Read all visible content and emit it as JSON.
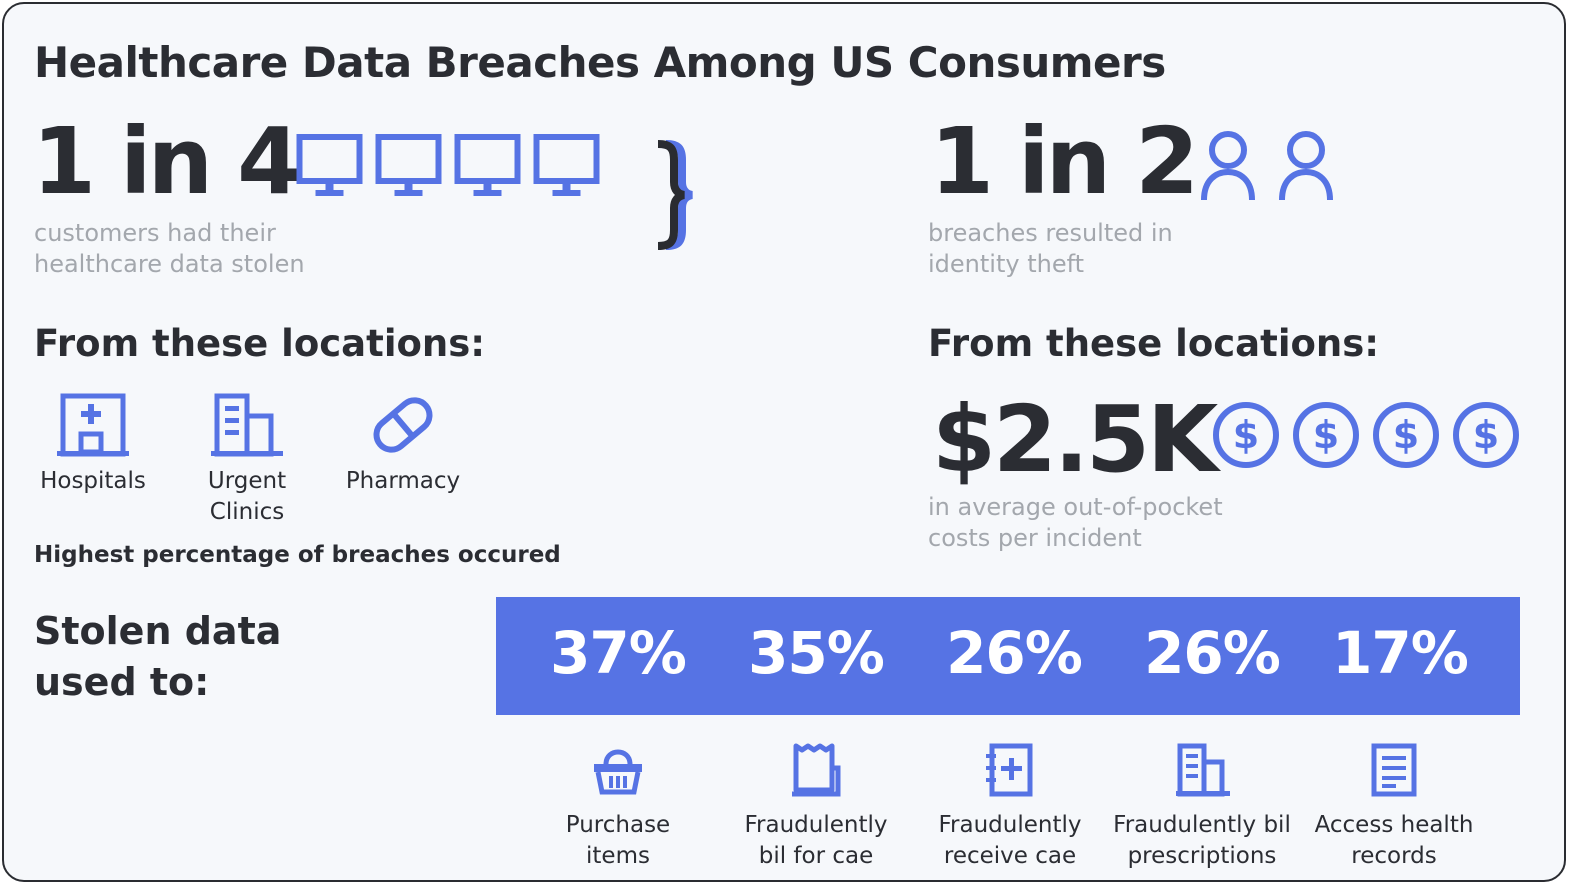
{
  "title": "Healthcare Data Breaches Among US Consumers",
  "left_stat": {
    "value": "1 in 4",
    "caption_line1": "customers had their",
    "caption_line2": "healthcare data stolen",
    "icon": "monitor-icon",
    "icon_count": 4
  },
  "right_stat": {
    "value": "1 in 2",
    "caption_line1": "breaches resulted in",
    "caption_line2": "identity theft",
    "icon": "person-icon",
    "icon_count": 2
  },
  "left_locations": {
    "heading": "From these locations:",
    "items": [
      {
        "label_line1": "Hospitals",
        "label_line2": "",
        "icon": "hospital-icon"
      },
      {
        "label_line1": "Urgent",
        "label_line2": "Clinics",
        "icon": "building-icon"
      },
      {
        "label_line1": "Pharmacy",
        "label_line2": "",
        "icon": "pill-icon"
      }
    ],
    "note": "Highest percentage of breaches occured"
  },
  "right_locations": {
    "heading": "From these locations:",
    "value": "$2.5K",
    "caption_line1": "in average out-of-pocket",
    "caption_line2": "costs per incident",
    "icon": "dollar-coin-icon",
    "icon_count": 4
  },
  "stolen_data": {
    "heading_line1": "Stolen data",
    "heading_line2": "used to:",
    "items": [
      {
        "percent": "37%",
        "label_line1": "Purchase",
        "label_line2": "items",
        "icon": "basket-icon"
      },
      {
        "percent": "35%",
        "label_line1": "Fraudulently",
        "label_line2": "bil for cae",
        "icon": "receipt-icon"
      },
      {
        "percent": "26%",
        "label_line1": "Fraudulently",
        "label_line2": "receive cae",
        "icon": "medical-notebook-icon"
      },
      {
        "percent": "26%",
        "label_line1": "Fraudulently bil",
        "label_line2": "prescriptions",
        "icon": "building-icon"
      },
      {
        "percent": "17%",
        "label_line1": "Access health",
        "label_line2": "records",
        "icon": "document-icon"
      }
    ]
  },
  "colors": {
    "accent": "#5673e4",
    "text": "#2b2d33",
    "muted": "#a3a7ad",
    "background": "#f6f8fb"
  }
}
